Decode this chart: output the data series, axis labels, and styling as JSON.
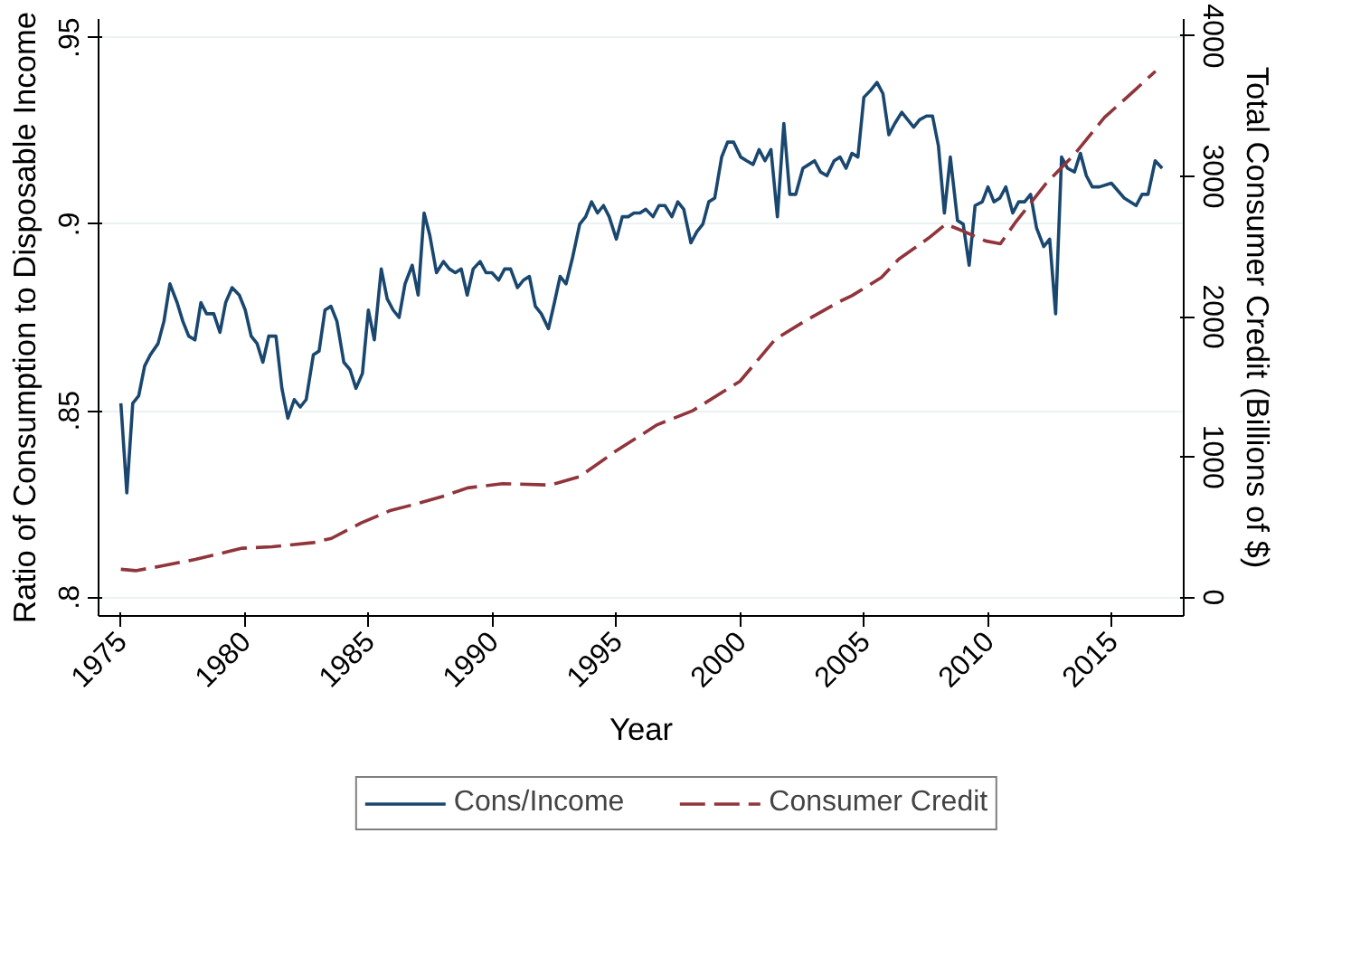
{
  "chart_data": {
    "type": "line",
    "xlabel": "Year",
    "ylabel": "Ratio of Consumption to Disposable Income",
    "y2label": "Total Consumer Credit (Billions of $)",
    "xlim": [
      1974.1,
      2017.9
    ],
    "xticks": [
      1975,
      1980,
      1985,
      1990,
      1995,
      2000,
      2005,
      2010,
      2015
    ],
    "ylim": [
      0.795,
      0.955
    ],
    "yticks": [
      {
        "value": 0.8,
        "label": ".8"
      },
      {
        "value": 0.85,
        "label": ".85"
      },
      {
        "value": 0.9,
        "label": ".9"
      },
      {
        "value": 0.95,
        "label": ".95"
      }
    ],
    "y2lim": [
      -133,
      4122
    ],
    "y2ticks": [
      0,
      1000,
      2000,
      3000,
      4000
    ],
    "grid": "y",
    "legend": "bottom",
    "series": [
      {
        "name": "Cons/Income",
        "color": "#1a476f",
        "line_style": "solid",
        "x": [
          1975.0,
          1975.24,
          1975.48,
          1975.72,
          1975.96,
          1976.19,
          1976.5,
          1976.74,
          1976.98,
          1977.27,
          1977.5,
          1977.74,
          1977.99,
          1978.23,
          1978.46,
          1978.75,
          1979.0,
          1979.23,
          1979.49,
          1979.78,
          1980.02,
          1980.26,
          1980.5,
          1980.73,
          1980.97,
          1981.26,
          1981.5,
          1981.74,
          1982.0,
          1982.24,
          1982.48,
          1982.77,
          1983.0,
          1983.24,
          1983.48,
          1983.72,
          1984.0,
          1984.25,
          1984.49,
          1984.75,
          1984.99,
          1985.23,
          1985.51,
          1985.75,
          1985.99,
          1986.23,
          1986.47,
          1986.76,
          1987.0,
          1987.24,
          1987.47,
          1987.74,
          1988.02,
          1988.26,
          1988.5,
          1988.74,
          1988.98,
          1989.22,
          1989.5,
          1989.74,
          1989.98,
          1990.25,
          1990.49,
          1990.73,
          1991.01,
          1991.25,
          1991.49,
          1991.73,
          1991.97,
          1992.26,
          1992.5,
          1992.73,
          1992.97,
          1993.23,
          1993.52,
          1993.76,
          1994.0,
          1994.24,
          1994.48,
          1994.71,
          1995.0,
          1995.24,
          1995.48,
          1995.71,
          1995.95,
          1996.19,
          1996.48,
          1996.72,
          1996.96,
          1997.24,
          1997.48,
          1997.72,
          1998.01,
          1998.25,
          1998.49,
          1998.73,
          1998.97,
          1999.25,
          1999.49,
          1999.73,
          2000.02,
          2000.26,
          2000.52,
          2000.76,
          2001.0,
          2001.24,
          2001.5,
          2001.76,
          2002.0,
          2002.24,
          2002.53,
          2002.77,
          2003.0,
          2003.24,
          2003.5,
          2003.79,
          2004.03,
          2004.27,
          2004.51,
          2004.75,
          2004.99,
          2005.28,
          2005.52,
          2005.76,
          2006.0,
          2006.24,
          2006.52,
          2006.76,
          2007.0,
          2007.24,
          2007.52,
          2007.76,
          2008.0,
          2008.24,
          2008.48,
          2008.77,
          2009.0,
          2009.24,
          2009.48,
          2009.77,
          2010.0,
          2010.24,
          2010.48,
          2010.72,
          2011.0,
          2011.24,
          2011.48,
          2011.72,
          2011.96,
          2012.25,
          2012.49,
          2012.73,
          2012.97,
          2013.21,
          2013.49,
          2013.73,
          2013.97,
          2014.21,
          2014.5,
          2014.98,
          2015.5,
          2015.98,
          2016.22,
          2016.46,
          2016.75,
          2017.03
        ],
        "values": [
          0.852,
          0.828,
          0.852,
          0.854,
          0.862,
          0.865,
          0.868,
          0.874,
          0.884,
          0.879,
          0.874,
          0.87,
          0.869,
          0.879,
          0.876,
          0.876,
          0.871,
          0.879,
          0.883,
          0.881,
          0.877,
          0.87,
          0.868,
          0.863,
          0.87,
          0.87,
          0.856,
          0.848,
          0.853,
          0.851,
          0.853,
          0.865,
          0.866,
          0.877,
          0.878,
          0.874,
          0.863,
          0.861,
          0.856,
          0.86,
          0.877,
          0.869,
          0.888,
          0.88,
          0.877,
          0.875,
          0.884,
          0.889,
          0.881,
          0.903,
          0.897,
          0.887,
          0.89,
          0.888,
          0.887,
          0.888,
          0.881,
          0.888,
          0.89,
          0.887,
          0.887,
          0.885,
          0.888,
          0.888,
          0.883,
          0.885,
          0.886,
          0.878,
          0.876,
          0.872,
          0.879,
          0.886,
          0.884,
          0.891,
          0.9,
          0.902,
          0.906,
          0.903,
          0.905,
          0.902,
          0.896,
          0.902,
          0.902,
          0.903,
          0.903,
          0.904,
          0.902,
          0.905,
          0.905,
          0.902,
          0.906,
          0.904,
          0.895,
          0.898,
          0.9,
          0.906,
          0.907,
          0.918,
          0.922,
          0.922,
          0.918,
          0.917,
          0.916,
          0.92,
          0.917,
          0.92,
          0.902,
          0.927,
          0.908,
          0.908,
          0.915,
          0.916,
          0.917,
          0.914,
          0.913,
          0.917,
          0.918,
          0.915,
          0.919,
          0.918,
          0.934,
          0.936,
          0.938,
          0.935,
          0.924,
          0.927,
          0.93,
          0.928,
          0.926,
          0.928,
          0.929,
          0.929,
          0.921,
          0.903,
          0.918,
          0.901,
          0.9,
          0.889,
          0.905,
          0.906,
          0.91,
          0.906,
          0.907,
          0.91,
          0.903,
          0.906,
          0.906,
          0.908,
          0.899,
          0.894,
          0.896,
          0.876,
          0.918,
          0.915,
          0.914,
          0.919,
          0.913,
          0.91,
          0.91,
          0.911,
          0.907,
          0.905,
          0.908,
          0.908,
          0.917,
          0.915
        ]
      },
      {
        "name": "Consumer Credit",
        "color": "#90353b",
        "axis": "y2",
        "line_style": "dashed",
        "x": [
          1975.0,
          1975.6,
          1976.55,
          1978.0,
          1979.9,
          1981.1,
          1982.77,
          1983.5,
          1984.7,
          1985.9,
          1986.8,
          1988.0,
          1989.0,
          1990.41,
          1992.32,
          1993.52,
          1994.96,
          1996.65,
          1998.08,
          1999.99,
          2001.42,
          2002.62,
          2004.03,
          2004.51,
          2005.7,
          2006.4,
          2007.6,
          2008.3,
          2009.0,
          2009.9,
          2010.5,
          2011.1,
          2012.3,
          2013.5,
          2014.7,
          2015.9,
          2016.76
        ],
        "values": [
          200,
          190,
          220,
          270,
          350,
          360,
          390,
          420,
          530,
          620,
          660,
          720,
          780,
          810,
          800,
          860,
          1040,
          1230,
          1330,
          1540,
          1840,
          1970,
          2110,
          2150,
          2280,
          2410,
          2560,
          2660,
          2610,
          2540,
          2520,
          2670,
          2940,
          3160,
          3420,
          3610,
          3750
        ]
      }
    ]
  }
}
